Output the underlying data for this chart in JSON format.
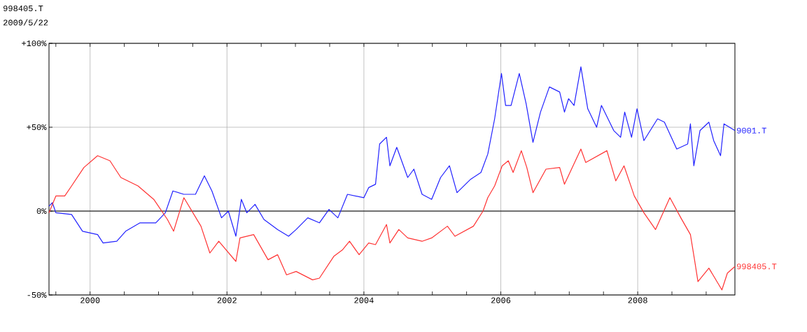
{
  "chart_data": {
    "type": "line",
    "title": "998405.T",
    "subtitle": "2009/5/22",
    "xlim": [
      1999.4,
      2009.42
    ],
    "ylim": [
      -50,
      100
    ],
    "xticks": [
      {
        "value": 1999.5,
        "label": null
      },
      2000,
      {
        "value": 2000.5,
        "label": null
      },
      {
        "value": 2001,
        "label": null
      },
      {
        "value": 2001.5,
        "label": null
      },
      2002,
      {
        "value": 2002.5,
        "label": null
      },
      {
        "value": 2003,
        "label": null
      },
      {
        "value": 2003.5,
        "label": null
      },
      2004,
      {
        "value": 2004.5,
        "label": null
      },
      {
        "value": 2005,
        "label": null
      },
      {
        "value": 2005.5,
        "label": null
      },
      2006,
      {
        "value": 2006.5,
        "label": null
      },
      {
        "value": 2007,
        "label": null
      },
      {
        "value": 2007.5,
        "label": null
      },
      2008,
      {
        "value": 2008.5,
        "label": null
      },
      {
        "value": 2009,
        "label": null
      }
    ],
    "yticks": [
      {
        "value": -50,
        "label": "-50%"
      },
      {
        "value": 0,
        "label": "0%"
      },
      {
        "value": 50,
        "label": "+50%"
      },
      {
        "value": 100,
        "label": "+100%"
      }
    ],
    "grid": true,
    "ref_lines": [
      {
        "axis": "y",
        "value": 0,
        "color": "#000000"
      }
    ],
    "series": [
      {
        "name": "9001.T",
        "color": "#2222ff",
        "x": [
          1999.4,
          1999.45,
          1999.5,
          1999.73,
          1999.89,
          2000.11,
          2000.19,
          2000.39,
          2000.52,
          2000.73,
          2000.96,
          2001.1,
          2001.21,
          2001.37,
          2001.54,
          2001.67,
          2001.78,
          2001.92,
          2002.02,
          2002.13,
          2002.21,
          2002.29,
          2002.41,
          2002.54,
          2002.74,
          2002.9,
          2003.01,
          2003.18,
          2003.35,
          2003.49,
          2003.62,
          2003.76,
          2004.0,
          2004.07,
          2004.17,
          2004.23,
          2004.33,
          2004.38,
          2004.48,
          2004.64,
          2004.73,
          2004.85,
          2004.99,
          2005.12,
          2005.25,
          2005.36,
          2005.56,
          2005.71,
          2005.81,
          2005.91,
          2006.01,
          2006.07,
          2006.15,
          2006.27,
          2006.37,
          2006.47,
          2006.58,
          2006.71,
          2006.86,
          2006.93,
          2006.99,
          2007.07,
          2007.17,
          2007.27,
          2007.4,
          2007.47,
          2007.65,
          2007.75,
          2007.81,
          2007.91,
          2007.99,
          2008.09,
          2008.29,
          2008.39,
          2008.57,
          2008.73,
          2008.77,
          2008.82,
          2008.91,
          2009.04,
          2009.11,
          2009.21,
          2009.26,
          2009.42
        ],
        "values": [
          3,
          5,
          -1,
          -2,
          -12,
          -14,
          -19,
          -18,
          -12,
          -7,
          -7,
          -1,
          12,
          10,
          10,
          21,
          12,
          -4,
          0,
          -15,
          7,
          -1,
          4,
          -5,
          -11,
          -15,
          -11,
          -4,
          -7,
          1,
          -4,
          10,
          8,
          14,
          16,
          40,
          44,
          27,
          38,
          20,
          25,
          10,
          7,
          20,
          27,
          11,
          19,
          23,
          34,
          55,
          82,
          63,
          63,
          82,
          64,
          41,
          59,
          74,
          71,
          59,
          67,
          63,
          86,
          61,
          50,
          63,
          48,
          44,
          59,
          44,
          61,
          42,
          55,
          53,
          37,
          40,
          52,
          27,
          48,
          53,
          42,
          33,
          52,
          48
        ]
      },
      {
        "name": "998405.T",
        "color": "#ff3333",
        "x": [
          1999.4,
          1999.5,
          1999.63,
          1999.73,
          1999.91,
          2000.11,
          2000.29,
          2000.45,
          2000.7,
          2000.93,
          2001.13,
          2001.22,
          2001.37,
          2001.62,
          2001.75,
          2001.88,
          2002.13,
          2002.19,
          2002.39,
          2002.6,
          2002.74,
          2002.87,
          2003.01,
          2003.25,
          2003.35,
          2003.56,
          2003.69,
          2003.79,
          2003.93,
          2004.07,
          2004.17,
          2004.33,
          2004.38,
          2004.51,
          2004.64,
          2004.85,
          2004.99,
          2005.22,
          2005.33,
          2005.6,
          2005.74,
          2005.81,
          2005.91,
          2006.02,
          2006.11,
          2006.18,
          2006.3,
          2006.38,
          2006.47,
          2006.66,
          2006.86,
          2006.93,
          2007.17,
          2007.24,
          2007.55,
          2007.68,
          2007.8,
          2007.95,
          2008.09,
          2008.26,
          2008.47,
          2008.63,
          2008.77,
          2008.83,
          2008.88,
          2009.04,
          2009.23,
          2009.31,
          2009.42
        ],
        "values": [
          -1,
          9,
          9,
          15,
          26,
          33,
          30,
          20,
          15,
          7,
          -5,
          -12,
          8,
          -9,
          -25,
          -18,
          -30,
          -16,
          -14,
          -29,
          -26,
          -38,
          -36,
          -41,
          -40,
          -27,
          -23,
          -18,
          -26,
          -19,
          -20,
          -8,
          -19,
          -11,
          -16,
          -18,
          -16,
          -9,
          -15,
          -9,
          0,
          8,
          15,
          27,
          30,
          23,
          36,
          26,
          11,
          25,
          26,
          16,
          37,
          29,
          36,
          18,
          27,
          9,
          -1,
          -11,
          8,
          -4,
          -14,
          -29,
          -42,
          -34,
          -47,
          -37,
          -33
        ]
      }
    ]
  }
}
